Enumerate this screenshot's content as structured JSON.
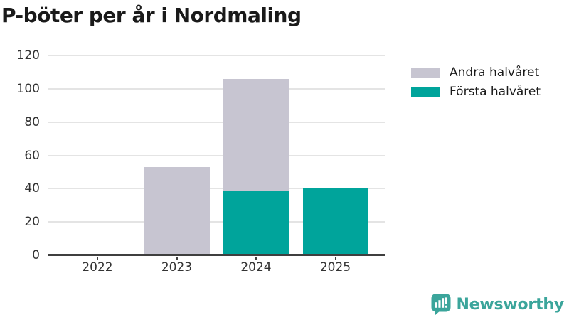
{
  "title": "P-böter per år i Nordmaling",
  "chart_data": {
    "type": "bar",
    "stacked": true,
    "title": "P-böter per år i Nordmaling",
    "xlabel": "",
    "ylabel": "",
    "categories": [
      "2022",
      "2023",
      "2024",
      "2025"
    ],
    "series": [
      {
        "name": "Första halvåret",
        "color": "#00a49b",
        "values": [
          0,
          0,
          39,
          40
        ]
      },
      {
        "name": "Andra halvåret",
        "color": "#c7c5d1",
        "values": [
          0,
          53,
          67,
          0
        ]
      }
    ],
    "totals": [
      0,
      53,
      106,
      40
    ],
    "ylim": [
      0,
      120
    ],
    "yticks": [
      0,
      20,
      40,
      60,
      80,
      100,
      120
    ],
    "grid": true,
    "legend_position": "right"
  },
  "legend": {
    "items": [
      {
        "label": "Andra halvåret",
        "color": "#c7c5d1"
      },
      {
        "label": "Första halvåret",
        "color": "#00a49b"
      }
    ]
  },
  "branding": {
    "logo_text": "Newsworthy",
    "logo_color": "#3ba59b"
  },
  "colors": {
    "background": "#ffffff",
    "title_text": "#1a1a1a",
    "axis_text": "#333333",
    "axis_line": "#3f3f3f",
    "gridline": "#e4e4e4",
    "bar_teal": "#00a49b",
    "bar_gray": "#c7c5d1"
  }
}
